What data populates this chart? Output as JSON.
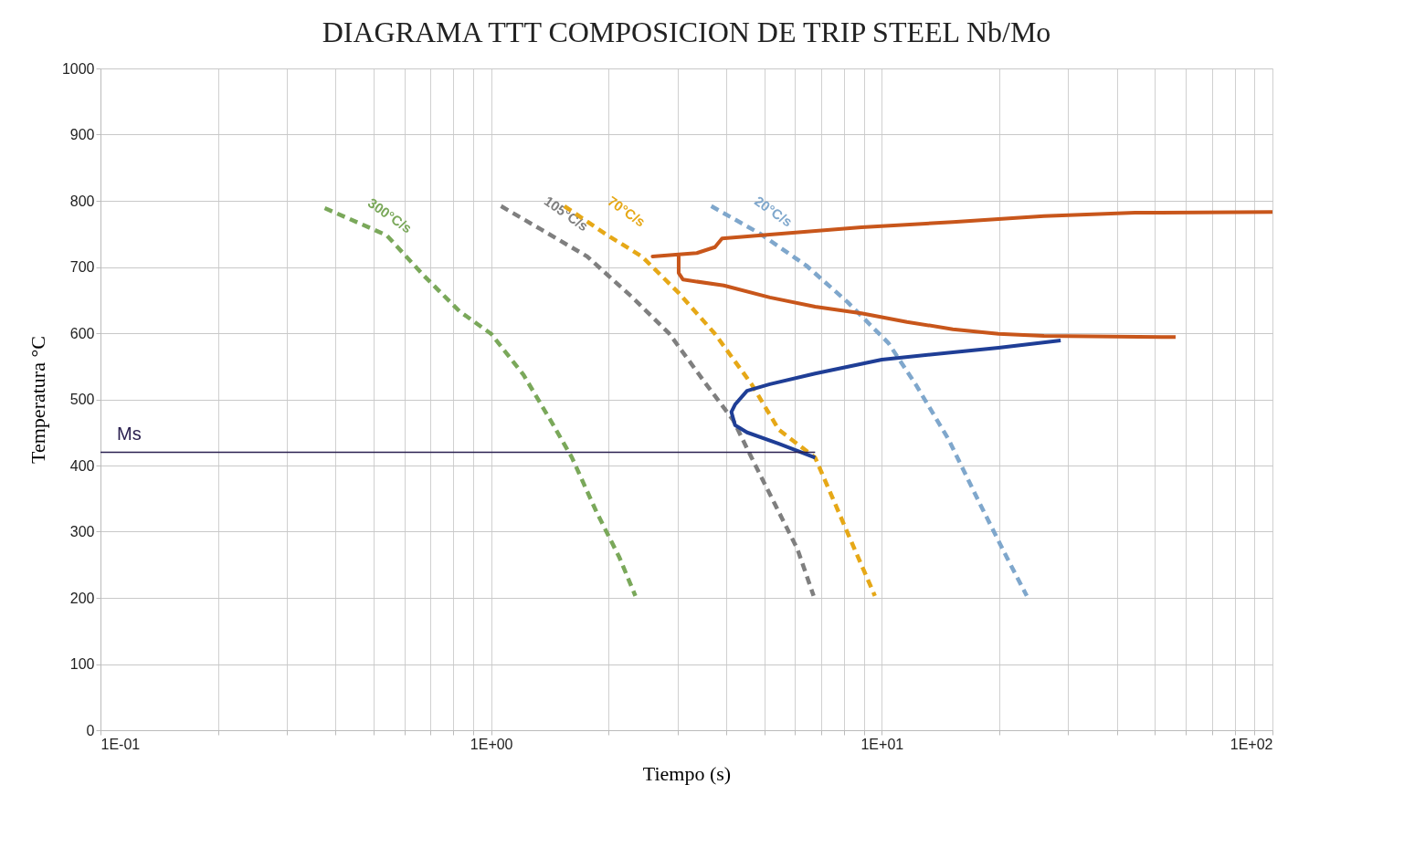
{
  "chart_data": {
    "type": "line",
    "title": "DIAGRAMA TTT COMPOSICION DE TRIP STEEL Nb/Mo",
    "xlabel": "Tiempo (s)",
    "ylabel": "Temperatura °C",
    "log": "x",
    "grid": true,
    "xlim": [
      0.1,
      100
    ],
    "ylim": [
      0,
      1000
    ],
    "xticks": [
      {
        "value": 0.1,
        "label": "1E-01"
      },
      {
        "value": 0.2,
        "label": null
      },
      {
        "value": 0.3,
        "label": null
      },
      {
        "value": 0.4,
        "label": null
      },
      {
        "value": 0.5,
        "label": null
      },
      {
        "value": 0.6,
        "label": null
      },
      {
        "value": 0.7,
        "label": null
      },
      {
        "value": 0.8,
        "label": null
      },
      {
        "value": 0.9,
        "label": null
      },
      {
        "value": 1,
        "label": "1E+00"
      },
      {
        "value": 2,
        "label": null
      },
      {
        "value": 3,
        "label": null
      },
      {
        "value": 4,
        "label": null
      },
      {
        "value": 5,
        "label": null
      },
      {
        "value": 6,
        "label": null
      },
      {
        "value": 7,
        "label": null
      },
      {
        "value": 8,
        "label": null
      },
      {
        "value": 9,
        "label": null
      },
      {
        "value": 10,
        "label": "1E+01"
      },
      {
        "value": 20,
        "label": null
      },
      {
        "value": 30,
        "label": null
      },
      {
        "value": 40,
        "label": null
      },
      {
        "value": 50,
        "label": null
      },
      {
        "value": 60,
        "label": null
      },
      {
        "value": 70,
        "label": null
      },
      {
        "value": 80,
        "label": null
      },
      {
        "value": 90,
        "label": null
      },
      {
        "value": 100,
        "label": "1E+02"
      }
    ],
    "yticks": [
      0,
      100,
      200,
      300,
      400,
      500,
      600,
      700,
      800,
      900,
      1000
    ],
    "series": [
      {
        "name": "300°C/s",
        "color": "#7aa85a",
        "line_style": "dashed",
        "x": [
          0.375,
          0.54,
          0.67,
          0.83,
          1.0,
          1.21,
          1.42,
          1.61,
          1.86,
          2.13,
          2.34
        ],
        "values": [
          789,
          748,
          688,
          633,
          599,
          537,
          468,
          412,
          330,
          261,
          203
        ]
      },
      {
        "name": "105°C/s",
        "color": "#7f7f7f",
        "line_style": "dashed",
        "x": [
          1.06,
          1.34,
          1.76,
          2.3,
          2.86,
          3.55,
          4.17,
          4.64,
          5.31,
          6.08,
          6.69
        ],
        "values": [
          792,
          757,
          716,
          654,
          599,
          523,
          468,
          412,
          343,
          274,
          203
        ]
      },
      {
        "name": "70°C/s",
        "color": "#e6a817",
        "line_style": "dashed",
        "x": [
          1.54,
          1.96,
          2.43,
          3.02,
          3.74,
          4.64,
          5.45,
          6.75,
          7.75,
          8.6,
          9.6
        ],
        "values": [
          792,
          750,
          716,
          661,
          599,
          523,
          454,
          412,
          330,
          268,
          203
        ]
      },
      {
        "name": "20°C/s",
        "color": "#7fa7cc",
        "line_style": "dashed",
        "x": [
          3.66,
          4.89,
          6.41,
          8.17,
          10.4,
          12.2,
          14.8,
          17.8,
          20.9,
          23.5
        ],
        "values": [
          792,
          750,
          702,
          647,
          585,
          523,
          440,
          343,
          261,
          203
        ]
      },
      {
        "color": "#c8561b",
        "line_style": "solid",
        "x": [
          100,
          44.5,
          26,
          15.2,
          8.87,
          5.17,
          3.9,
          3.74,
          3.36,
          3.02,
          2.59,
          3.02,
          3.02,
          3.1,
          3.94,
          5.17,
          6.75,
          8.87,
          11.6,
          15.2,
          19.9,
          26,
          56.5
        ],
        "values": [
          783,
          782,
          777,
          768,
          760,
          749,
          743,
          730,
          721,
          719,
          716,
          719,
          691,
          681,
          672,
          654,
          640,
          630,
          617,
          606,
          599,
          596,
          594
        ]
      },
      {
        "color": "#1f3e96",
        "line_style": "solid",
        "x": [
          28.7,
          19.9,
          15.2,
          10,
          6.75,
          5.17,
          4.52,
          4.21,
          4.12,
          4.21,
          4.52,
          5.45,
          6.75
        ],
        "values": [
          589,
          578,
          571,
          560,
          539,
          523,
          513,
          492,
          481,
          461,
          450,
          433,
          412
        ]
      },
      {
        "name": "Ms",
        "color": "#2b2050",
        "line_style": "solid",
        "x": [
          0.1,
          6.75
        ],
        "values": [
          420,
          420
        ]
      }
    ]
  }
}
